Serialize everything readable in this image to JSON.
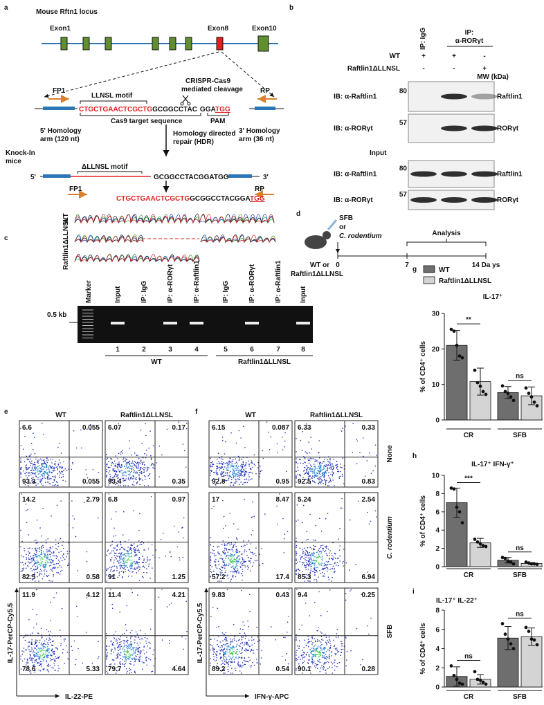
{
  "panel_labels": [
    "a",
    "b",
    "c",
    "d",
    "e",
    "f",
    "g",
    "h",
    "i"
  ],
  "panel_a": {
    "locus_title": "Mouse Rftn1 locus",
    "exons": [
      "Exon1",
      "Exon8",
      "Exon10"
    ],
    "primers_top": [
      "FP1",
      "RP"
    ],
    "motif": "LLNSL motif",
    "cleavage": [
      "CRISPR-Cas9",
      "mediated cleavage"
    ],
    "target_sequence": [
      "CTGCTGAACTCGCTG",
      "GCGGCCTAC",
      "GGA",
      "TGG"
    ],
    "target_labels": [
      "Cas9 target sequence",
      "PAM"
    ],
    "homology_5": [
      "5' Homology",
      "arm (120 nt)"
    ],
    "homology_3": [
      "3' Homology",
      "arm (36 nt)"
    ],
    "hdr": [
      "Homology directed",
      "repair (HDR)"
    ],
    "knock_in": [
      "Knock-In",
      "mice"
    ],
    "deleted_motif": "ΔLLNSL motif",
    "ki_sequence": [
      "5'",
      "GCGGCCTACGGATGG",
      "3'"
    ],
    "primers_bottom": [
      "FP1",
      "RP"
    ],
    "read_sequence": [
      "CTGCTGAACTCGCTG",
      "GCGGCCTACGGA",
      "TGG"
    ],
    "trace_labels": [
      "WT",
      "Raftlin1ΔLLNSL"
    ]
  },
  "panel_b": {
    "ip_igg": "IP: IgG",
    "ip_ror": [
      "IP:",
      "α-RORγt"
    ],
    "rows": [
      {
        "label": "WT",
        "signs": [
          "+",
          "+",
          "-"
        ]
      },
      {
        "label": "Raftlin1ΔLLNSL",
        "signs": [
          "-",
          "-",
          "+"
        ]
      }
    ],
    "mw": "MW (kDa)",
    "input": "Input",
    "blots": [
      {
        "ib": "IB: α-Raftlin1",
        "mw": 80,
        "protein": "Raftlin1"
      },
      {
        "ib": "IB: α-RORγt",
        "mw": 57,
        "protein": "RORγt"
      },
      {
        "ib": "IB: α-Raftlin1",
        "mw": 80,
        "protein": "Raftlin1"
      },
      {
        "ib": "IB: α-RORγt",
        "mw": 57,
        "protein": "RORγt"
      }
    ]
  },
  "panel_c": {
    "marker": "Marker",
    "lanes": [
      "Input",
      "IP: IgG",
      "IP: α-RORγt",
      "IP: α-Raftlin1",
      "IP: IgG",
      "IP: α-RORγt",
      "IP: α-Raftlin1",
      "Input"
    ],
    "lane_numbers": [
      1,
      2,
      3,
      4,
      5,
      6,
      7,
      8
    ],
    "size": "0.5 kb",
    "groups": [
      "WT",
      "Raftlin1ΔLLNSL"
    ]
  },
  "panel_d": {
    "treatment": [
      "SFB",
      "or",
      "C. rodentium"
    ],
    "analysis": "Analysis",
    "timeline_labels": [
      "0",
      "7",
      "14 Da ys"
    ],
    "mice": [
      "WT or",
      "Raftlin1ΔLLNSL"
    ]
  },
  "panel_e": {
    "columns": [
      "WT",
      "Raftlin1ΔLLNSL"
    ],
    "y_label": "IL-17-PerCP-Cy5.5",
    "x_label": "IL-22-PE",
    "quadrants": [
      [
        [
          6.6,
          0.055,
          93.3,
          0.055
        ],
        [
          6.07,
          0.17,
          93.4,
          0.35
        ]
      ],
      [
        [
          14.2,
          2.79,
          82.5,
          0.58
        ],
        [
          6.8,
          0.97,
          91,
          1.25
        ]
      ],
      [
        [
          11.9,
          4.12,
          78.6,
          5.33
        ],
        [
          11.4,
          4.21,
          79.7,
          4.64
        ]
      ]
    ]
  },
  "panel_f": {
    "columns": [
      "WT",
      "Raftlin1ΔLLNSL"
    ],
    "rows": [
      "None",
      "C. rodentium",
      "SFB"
    ],
    "y_label": "IL-17-PerCP-Cy5.5",
    "x_label": "IFN-γ-APC",
    "quadrants": [
      [
        [
          6.15,
          0.087,
          92.8,
          0.95
        ],
        [
          6.33,
          0.33,
          92.5,
          0.83
        ]
      ],
      [
        [
          17,
          8.47,
          57.2,
          17.4
        ],
        [
          5.24,
          2.54,
          85.3,
          6.94
        ]
      ],
      [
        [
          9.83,
          0.43,
          89.2,
          0.54
        ],
        [
          9.4,
          0.25,
          90.1,
          0.28
        ]
      ]
    ]
  },
  "chart_data": [
    {
      "type": "bar",
      "title": "IL-17⁺",
      "y_label": "% of CD4⁺ cells",
      "categories": [
        "CR",
        "SFB"
      ],
      "series": [
        {
          "name": "WT",
          "color": "#6e6e6e",
          "values": [
            21,
            7.7
          ],
          "errors": [
            4.2,
            1.7
          ],
          "points": [
            [
              25.5,
              25,
              21,
              18,
              17.5
            ],
            [
              9.6,
              8,
              7.5,
              6.5,
              5.5
            ]
          ]
        },
        {
          "name": "Raftlin1ΔLLNSL",
          "color": "#d4d4d4",
          "values": [
            10.8,
            6.8
          ],
          "errors": [
            3.8,
            2.5
          ],
          "points": [
            [
              14,
              10.5,
              9.5,
              8,
              7.2
            ],
            [
              9,
              7.5,
              6.5,
              5,
              4
            ]
          ]
        }
      ],
      "ylim": [
        0,
        30
      ],
      "yticks": [
        0,
        10,
        20,
        30
      ],
      "significance": [
        "**",
        "ns"
      ],
      "legend": "top-left"
    },
    {
      "type": "bar",
      "title": "IL-17⁺ IFN-γ⁺",
      "y_label": "% of CD4⁺ cells",
      "categories": [
        "CR",
        "SFB"
      ],
      "series": [
        {
          "name": "WT",
          "color": "#6e6e6e",
          "values": [
            7.0,
            0.7
          ],
          "errors": [
            1.6,
            0.3
          ],
          "points": [
            [
              8.6,
              8.5,
              6.5,
              6.0,
              4.8
            ],
            [
              1.0,
              0.9,
              0.6,
              0.5,
              0.3
            ]
          ]
        },
        {
          "name": "Raftlin1ΔLLNSL",
          "color": "#d4d4d4",
          "values": [
            2.6,
            0.35
          ],
          "errors": [
            0.5,
            0.1
          ],
          "points": [
            [
              3.0,
              2.7,
              2.5,
              2.3,
              2.2
            ],
            [
              0.5,
              0.4,
              0.3,
              0.3,
              0.25
            ]
          ]
        }
      ],
      "ylim": [
        0,
        10
      ],
      "yticks": [
        0,
        2,
        4,
        6,
        8,
        10
      ],
      "significance": [
        "***",
        "ns"
      ]
    },
    {
      "type": "bar",
      "title": "IL-17⁺ IL-22⁺",
      "y_label": "% of CD4⁺ cells",
      "categories": [
        "CR",
        "SFB"
      ],
      "series": [
        {
          "name": "WT",
          "color": "#6e6e6e",
          "values": [
            1.1,
            5.1
          ],
          "errors": [
            1.0,
            1.2
          ],
          "points": [
            [
              2.2,
              1.2,
              0.8,
              0.4,
              0.3
            ],
            [
              6.6,
              5.5,
              5.0,
              4.5,
              4.0
            ]
          ]
        },
        {
          "name": "Raftlin1ΔLLNSL",
          "color": "#d4d4d4",
          "values": [
            0.8,
            5.25
          ],
          "errors": [
            0.5,
            0.9
          ],
          "points": [
            [
              1.6,
              0.8,
              0.7,
              0.5,
              0.3
            ],
            [
              6.2,
              5.8,
              5.0,
              4.9,
              4.4
            ]
          ]
        }
      ],
      "ylim": [
        0,
        8
      ],
      "yticks": [
        0,
        2,
        4,
        6,
        8
      ],
      "significance": [
        "ns",
        "ns"
      ]
    }
  ]
}
